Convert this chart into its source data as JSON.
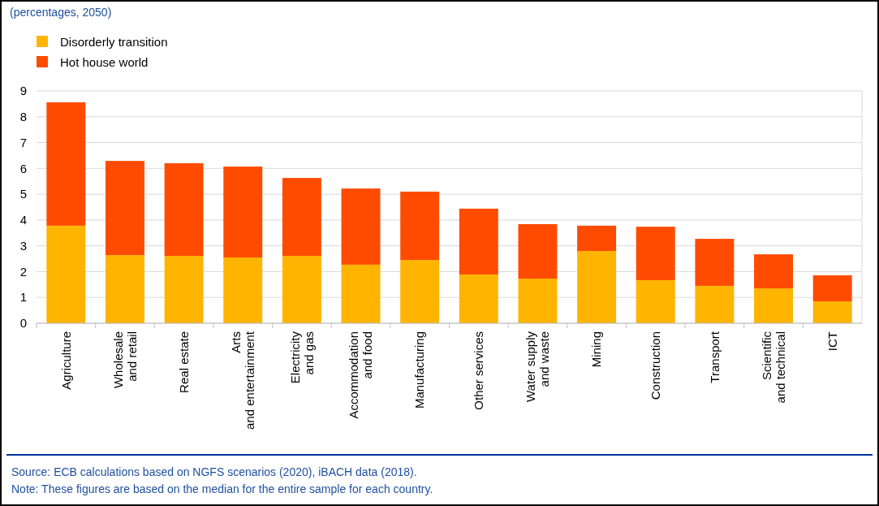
{
  "chart_data": {
    "type": "bar",
    "title": "(percentages, 2050)",
    "stacked": true,
    "categories": [
      "Agriculture",
      "Wholesale and retail",
      "Real estate",
      "Arts and entertainment",
      "Electricity and gas",
      "Accommodation and food",
      "Manufacturing",
      "Other services",
      "Water supply and waste",
      "Mining",
      "Construction",
      "Transport",
      "Scientific and technical",
      "ICT"
    ],
    "series": [
      {
        "name": "Disorderly transition",
        "color": "#ffb400",
        "values": [
          3.78,
          2.64,
          2.61,
          2.55,
          2.61,
          2.27,
          2.45,
          1.89,
          1.73,
          2.8,
          1.67,
          1.45,
          1.35,
          0.85
        ]
      },
      {
        "name": "Hot house world",
        "color": "#ff4b00",
        "values": [
          4.78,
          3.65,
          3.59,
          3.52,
          3.02,
          2.95,
          2.65,
          2.55,
          2.11,
          0.98,
          2.07,
          1.82,
          1.32,
          1.01
        ]
      }
    ],
    "ylim": [
      0,
      9
    ],
    "yticks": [
      0,
      1,
      2,
      3,
      4,
      5,
      6,
      7,
      8,
      9
    ],
    "grid": "y",
    "legend": "top left",
    "annotations": [
      "Source: ECB calculations based on NGFS scenarios (2020), iBACH data (2018).",
      "Note: These figures are based on the median for the entire sample for each country."
    ]
  }
}
